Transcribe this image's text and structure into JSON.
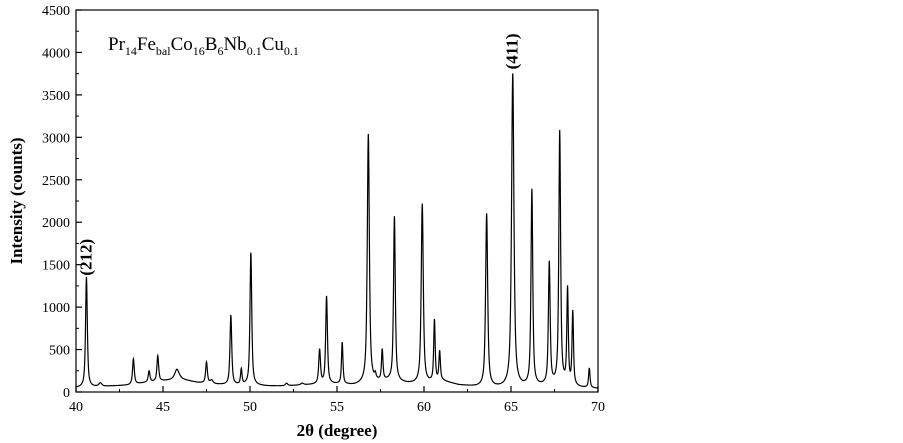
{
  "chart_data": {
    "type": "line",
    "xlabel": "2θ (degree)",
    "ylabel": "Intensity (counts)",
    "xlim": [
      40,
      70
    ],
    "ylim": [
      0,
      4500
    ],
    "xticks": [
      40,
      45,
      50,
      55,
      60,
      65,
      70
    ],
    "yticks": [
      0,
      500,
      1000,
      1500,
      2000,
      2500,
      3000,
      3500,
      4000,
      4500
    ],
    "grid": false,
    "formula": {
      "parts": [
        {
          "t": "Pr",
          "sub": false
        },
        {
          "t": "14",
          "sub": true
        },
        {
          "t": "Fe",
          "sub": false
        },
        {
          "t": "bal",
          "sub": true
        },
        {
          "t": "Co",
          "sub": false
        },
        {
          "t": "16",
          "sub": true
        },
        {
          "t": "B",
          "sub": false
        },
        {
          "t": "6",
          "sub": true
        },
        {
          "t": "Nb",
          "sub": false
        },
        {
          "t": "0.1",
          "sub": true
        },
        {
          "t": "Cu",
          "sub": false
        },
        {
          "t": "0.1",
          "sub": true
        }
      ]
    },
    "annotations": [
      {
        "text": "(212)",
        "x": 40.6,
        "y": 1300
      },
      {
        "text": "(411)",
        "x": 65.1,
        "y": 3730
      }
    ],
    "baseline": [
      [
        40.0,
        50
      ],
      [
        41.0,
        60
      ],
      [
        42.0,
        70
      ],
      [
        43.0,
        80
      ],
      [
        44.0,
        110
      ],
      [
        45.0,
        130
      ],
      [
        46.0,
        150
      ],
      [
        47.0,
        110
      ],
      [
        48.0,
        90
      ],
      [
        49.0,
        80
      ],
      [
        50.0,
        80
      ],
      [
        51.0,
        70
      ],
      [
        52.0,
        70
      ],
      [
        53.0,
        80
      ],
      [
        54.0,
        90
      ],
      [
        55.0,
        90
      ],
      [
        56.0,
        80
      ],
      [
        57.0,
        110
      ],
      [
        58.0,
        130
      ],
      [
        59.0,
        100
      ],
      [
        60.0,
        90
      ],
      [
        61.0,
        130
      ],
      [
        62.0,
        80
      ],
      [
        63.0,
        60
      ],
      [
        64.0,
        50
      ],
      [
        65.0,
        50
      ],
      [
        66.0,
        60
      ],
      [
        67.0,
        70
      ],
      [
        68.0,
        80
      ],
      [
        69.0,
        50
      ],
      [
        70.0,
        40
      ]
    ],
    "peaks": [
      {
        "x": 40.6,
        "y": 1300,
        "w": 0.06
      },
      {
        "x": 41.4,
        "y": 40,
        "w": 0.1
      },
      {
        "x": 43.3,
        "y": 300,
        "w": 0.06
      },
      {
        "x": 44.2,
        "y": 130,
        "w": 0.06
      },
      {
        "x": 44.7,
        "y": 300,
        "w": 0.06
      },
      {
        "x": 45.8,
        "y": 120,
        "w": 0.15
      },
      {
        "x": 47.5,
        "y": 250,
        "w": 0.06
      },
      {
        "x": 47.8,
        "y": 40,
        "w": 0.1
      },
      {
        "x": 48.9,
        "y": 820,
        "w": 0.06
      },
      {
        "x": 49.5,
        "y": 180,
        "w": 0.05
      },
      {
        "x": 50.05,
        "y": 1560,
        "w": 0.06
      },
      {
        "x": 52.1,
        "y": 30,
        "w": 0.08
      },
      {
        "x": 53.0,
        "y": 20,
        "w": 0.1
      },
      {
        "x": 54.0,
        "y": 400,
        "w": 0.06
      },
      {
        "x": 54.4,
        "y": 1030,
        "w": 0.06
      },
      {
        "x": 55.3,
        "y": 490,
        "w": 0.05
      },
      {
        "x": 56.8,
        "y": 2930,
        "w": 0.07
      },
      {
        "x": 57.2,
        "y": 60,
        "w": 0.05
      },
      {
        "x": 57.6,
        "y": 360,
        "w": 0.05
      },
      {
        "x": 58.3,
        "y": 1940,
        "w": 0.06
      },
      {
        "x": 59.9,
        "y": 2120,
        "w": 0.07
      },
      {
        "x": 60.6,
        "y": 720,
        "w": 0.05
      },
      {
        "x": 60.9,
        "y": 340,
        "w": 0.05
      },
      {
        "x": 63.6,
        "y": 2040,
        "w": 0.07
      },
      {
        "x": 65.1,
        "y": 3690,
        "w": 0.08
      },
      {
        "x": 66.2,
        "y": 2310,
        "w": 0.06
      },
      {
        "x": 67.2,
        "y": 1440,
        "w": 0.06
      },
      {
        "x": 67.8,
        "y": 2980,
        "w": 0.06
      },
      {
        "x": 68.25,
        "y": 1120,
        "w": 0.05
      },
      {
        "x": 68.55,
        "y": 860,
        "w": 0.05
      },
      {
        "x": 69.5,
        "y": 230,
        "w": 0.05
      }
    ]
  }
}
